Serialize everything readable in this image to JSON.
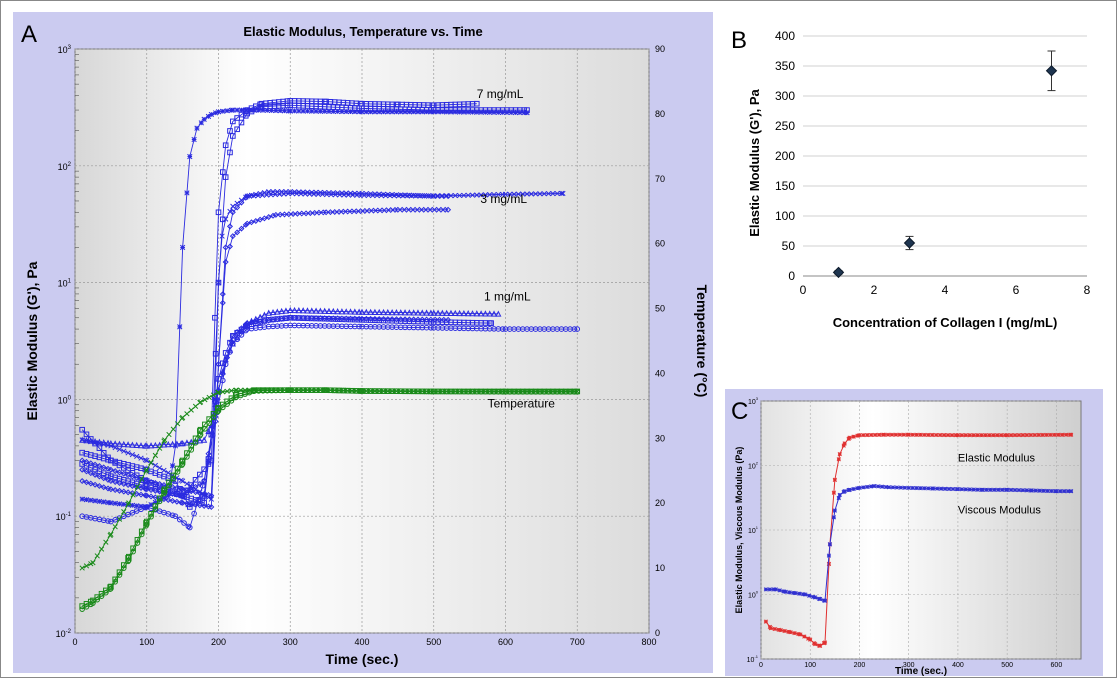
{
  "chart_data": [
    {
      "panel": "A",
      "type": "line",
      "title": "Elastic Modulus, Temperature vs. Time",
      "xlabel": "Time (sec.)",
      "ylabel": "Elastic Modulus (G'), Pa",
      "y2label": "Temperature (°C)",
      "xlim": [
        0,
        800
      ],
      "ylim": [
        0.01,
        1000
      ],
      "yscale": "log",
      "y2lim": [
        0,
        90
      ],
      "xticks": [
        "0",
        "100",
        "200",
        "300",
        "400",
        "500",
        "600",
        "700",
        "800"
      ],
      "yticks": [
        {
          "base": "10",
          "exp": "-2"
        },
        {
          "base": "10",
          "exp": "-1"
        },
        {
          "base": "10",
          "exp": "0"
        },
        {
          "base": "10",
          "exp": "1"
        },
        {
          "base": "10",
          "exp": "2"
        },
        {
          "base": "10",
          "exp": "3"
        }
      ],
      "y2ticks": [
        "0",
        "10",
        "20",
        "30",
        "40",
        "50",
        "60",
        "70",
        "80",
        "90"
      ],
      "grid": true,
      "annotations": [
        {
          "text": "7 mg/mL",
          "x": 560,
          "y": 380
        },
        {
          "text": "3 mg/mL",
          "x": 565,
          "y": 48
        },
        {
          "text": "1 mg/mL",
          "x": 570,
          "y": 7
        },
        {
          "text": "Temperature",
          "x": 575,
          "y": 0.85
        }
      ],
      "series": [
        {
          "color": "#2b2be0",
          "marker": "*",
          "x": [
            10,
            50,
            100,
            130,
            140,
            150,
            160,
            170,
            180,
            190,
            200,
            220,
            250,
            300,
            400,
            500,
            630
          ],
          "y": [
            0.14,
            0.13,
            0.12,
            0.15,
            0.4,
            20,
            120,
            210,
            250,
            275,
            290,
            300,
            300,
            295,
            290,
            290,
            285
          ]
        },
        {
          "color": "#2b2be0",
          "marker": "□",
          "x": [
            10,
            50,
            100,
            150,
            180,
            190,
            195,
            200,
            210,
            220,
            240,
            260,
            300,
            350,
            400,
            450,
            500,
            560
          ],
          "y": [
            0.55,
            0.3,
            0.2,
            0.15,
            0.13,
            0.5,
            5,
            40,
            150,
            240,
            300,
            340,
            360,
            355,
            340,
            335,
            330,
            340
          ]
        },
        {
          "color": "#2b2be0",
          "marker": "□",
          "x": [
            10,
            50,
            100,
            150,
            190,
            200,
            210,
            220,
            240,
            260,
            300,
            400,
            500,
            630
          ],
          "y": [
            0.28,
            0.22,
            0.18,
            0.15,
            0.3,
            10,
            80,
            180,
            280,
            320,
            330,
            310,
            300,
            300
          ]
        },
        {
          "color": "#2b2be0",
          "marker": "x",
          "x": [
            10,
            50,
            100,
            150,
            190,
            195,
            200,
            205,
            210,
            220,
            240,
            270,
            300,
            400,
            500,
            600,
            680
          ],
          "y": [
            0.45,
            0.4,
            0.3,
            0.2,
            0.14,
            1,
            10,
            25,
            35,
            45,
            55,
            60,
            60,
            58,
            55,
            57,
            58
          ]
        },
        {
          "color": "#2b2be0",
          "marker": "◇",
          "x": [
            10,
            50,
            100,
            150,
            190,
            200,
            210,
            220,
            240,
            280,
            350,
            450,
            520
          ],
          "y": [
            0.3,
            0.25,
            0.2,
            0.17,
            0.15,
            2,
            15,
            25,
            32,
            38,
            40,
            42,
            42
          ]
        },
        {
          "color": "#2b2be0",
          "marker": "◇",
          "x": [
            10,
            50,
            100,
            150,
            190,
            200,
            210,
            220,
            240,
            300,
            400,
            520
          ],
          "y": [
            0.2,
            0.17,
            0.15,
            0.13,
            0.12,
            2,
            20,
            40,
            55,
            58,
            56,
            55
          ]
        },
        {
          "color": "#2b2be0",
          "marker": "△",
          "x": [
            10,
            50,
            100,
            150,
            180,
            190,
            200,
            210,
            220,
            240,
            270,
            300,
            400,
            500,
            590
          ],
          "y": [
            0.45,
            0.42,
            0.4,
            0.42,
            0.45,
            0.6,
            1.2,
            2.2,
            3,
            4.5,
            5.5,
            5.8,
            5.6,
            5.5,
            5.4
          ]
        },
        {
          "color": "#2b2be0",
          "marker": "□",
          "x": [
            10,
            50,
            100,
            140,
            160,
            180,
            190,
            200,
            210,
            220,
            240,
            270,
            300,
            400,
            500,
            580
          ],
          "y": [
            0.35,
            0.3,
            0.25,
            0.2,
            0.12,
            0.15,
            0.5,
            1.5,
            2.5,
            3.5,
            4.3,
            4.8,
            5,
            4.8,
            4.6,
            4.5
          ]
        },
        {
          "color": "#2b2be0",
          "marker": "○",
          "x": [
            10,
            50,
            100,
            140,
            160,
            180,
            200,
            210,
            220,
            240,
            270,
            300,
            400,
            500,
            600,
            700
          ],
          "y": [
            0.1,
            0.09,
            0.12,
            0.1,
            0.08,
            0.2,
            0.9,
            2,
            3,
            4,
            4.2,
            4.3,
            4.2,
            4.1,
            4,
            4
          ]
        },
        {
          "color": "#2b2be0",
          "marker": "◇",
          "x": [
            10,
            50,
            100,
            150,
            180,
            200,
            220,
            240,
            300,
            400,
            520
          ],
          "y": [
            0.25,
            0.2,
            0.17,
            0.15,
            0.2,
            1.2,
            3.5,
            4.5,
            5,
            4.9,
            4.8
          ]
        },
        {
          "color": "#1a8a1a",
          "marker": "x",
          "x": [
            10,
            25,
            50,
            75,
            100,
            125,
            150,
            175,
            200,
            225,
            250,
            300,
            350,
            400,
            500,
            600,
            700
          ],
          "y": [
            0.036,
            0.04,
            0.07,
            0.13,
            0.25,
            0.45,
            0.7,
            0.95,
            1.15,
            1.2,
            1.2,
            1.2,
            1.2,
            1.18,
            1.17,
            1.17,
            1.17
          ]
        },
        {
          "color": "#1a8a1a",
          "marker": "□",
          "x": [
            10,
            25,
            50,
            75,
            100,
            125,
            150,
            175,
            200,
            225,
            250,
            300,
            350,
            400,
            500,
            600,
            700
          ],
          "y": [
            0.017,
            0.019,
            0.025,
            0.045,
            0.09,
            0.17,
            0.3,
            0.55,
            0.85,
            1.1,
            1.2,
            1.2,
            1.2,
            1.18,
            1.17,
            1.17,
            1.17
          ]
        },
        {
          "color": "#1a8a1a",
          "marker": "○",
          "x": [
            10,
            25,
            50,
            75,
            100,
            125,
            150,
            175,
            200,
            225,
            250,
            300,
            350,
            400,
            500,
            600,
            700
          ],
          "y": [
            0.016,
            0.018,
            0.024,
            0.042,
            0.085,
            0.16,
            0.28,
            0.5,
            0.8,
            1.05,
            1.18,
            1.2,
            1.2,
            1.18,
            1.17,
            1.16,
            1.16
          ]
        }
      ]
    },
    {
      "panel": "B",
      "type": "scatter",
      "title": "",
      "xlabel": "Concentration of Collagen I (mg/mL)",
      "ylabel": "Elastic Modulus (G'), Pa",
      "xlim": [
        0,
        8
      ],
      "ylim": [
        0,
        400
      ],
      "xticks": [
        "0",
        "2",
        "4",
        "6",
        "8"
      ],
      "yticks": [
        "0",
        "50",
        "100",
        "150",
        "200",
        "250",
        "300",
        "350",
        "400"
      ],
      "grid": true,
      "points": [
        {
          "x": 1,
          "y": 6,
          "err": 3
        },
        {
          "x": 3,
          "y": 55,
          "err": 11
        },
        {
          "x": 7,
          "y": 342,
          "err": 33
        }
      ]
    },
    {
      "panel": "C",
      "type": "line",
      "title": "",
      "xlabel": "Time (sec.)",
      "ylabel": "Elastic Modulus, Viscous Modulus (Pa)",
      "xlim": [
        0,
        650
      ],
      "ylim": [
        0.1,
        1000
      ],
      "yscale": "log",
      "xticks": [
        "0",
        "100",
        "200",
        "300",
        "400",
        "500",
        "600"
      ],
      "yticks": [
        {
          "base": "10",
          "exp": "-1"
        },
        {
          "base": "10",
          "exp": "0"
        },
        {
          "base": "10",
          "exp": "1"
        },
        {
          "base": "10",
          "exp": "2"
        },
        {
          "base": "10",
          "exp": "3"
        }
      ],
      "grid": true,
      "annotations": [
        {
          "text": "Elastic Modulus",
          "x": 400,
          "y": 115
        },
        {
          "text": "Viscous Modulus",
          "x": 400,
          "y": 18
        }
      ],
      "series": [
        {
          "name": "Elastic Modulus",
          "color": "#e03030",
          "x": [
            10,
            20,
            40,
            60,
            80,
            100,
            110,
            120,
            130,
            140,
            150,
            160,
            170,
            180,
            200,
            250,
            300,
            400,
            500,
            630
          ],
          "y": [
            0.38,
            0.3,
            0.28,
            0.26,
            0.24,
            0.2,
            0.17,
            0.16,
            0.18,
            6,
            60,
            150,
            220,
            270,
            295,
            300,
            300,
            295,
            295,
            300
          ]
        },
        {
          "name": "Viscous Modulus",
          "color": "#3030d0",
          "x": [
            10,
            30,
            50,
            70,
            90,
            110,
            120,
            130,
            140,
            150,
            160,
            170,
            180,
            200,
            230,
            260,
            300,
            350,
            400,
            450,
            500,
            550,
            600,
            630
          ],
          "y": [
            1.2,
            1.2,
            1.1,
            1.05,
            1.0,
            0.9,
            0.85,
            0.8,
            6,
            20,
            35,
            40,
            42,
            45,
            48,
            46,
            45,
            44,
            43,
            42,
            42,
            41,
            40,
            40
          ]
        }
      ]
    }
  ],
  "labels": {
    "panelA": "A",
    "panelB": "B",
    "panelC": "C"
  }
}
